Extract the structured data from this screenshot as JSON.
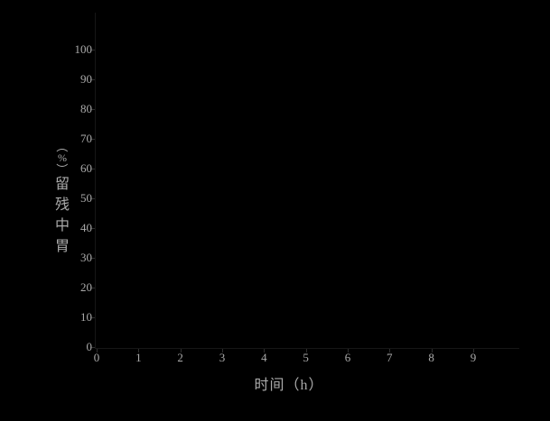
{
  "chart_data": {
    "type": "line",
    "title": "",
    "xlabel": "时间（h）",
    "ylabel": "胃中残留（%）",
    "x_ticks": [
      "0",
      "1",
      "2",
      "3",
      "4",
      "5",
      "6",
      "7",
      "8",
      "9"
    ],
    "y_ticks": [
      "0",
      "10",
      "20",
      "30",
      "40",
      "50",
      "60",
      "70",
      "80",
      "90",
      "100"
    ],
    "xlim": [
      0,
      10.1
    ],
    "ylim": [
      0,
      110
    ],
    "grid": false,
    "legend": false,
    "series": []
  },
  "ylabel_stack": [
    "（",
    "%",
    "）",
    "留",
    "残",
    "中",
    "胃"
  ],
  "colors": {
    "background": "#000000",
    "text": "#aaaaaa",
    "tick_mark": "#2e2e2e",
    "spine": "#161616"
  }
}
